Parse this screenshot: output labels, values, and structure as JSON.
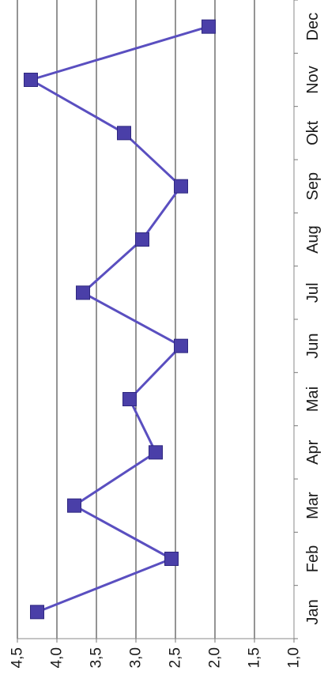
{
  "chart_data": {
    "type": "line",
    "orientation": "rotated-90-ccw",
    "title": "",
    "xlabel": "",
    "ylabel": "",
    "categories": [
      "Jan",
      "Feb",
      "Mar",
      "Apr",
      "Mai",
      "Jun",
      "Jul",
      "Aug",
      "Sep",
      "Okt",
      "Nov",
      "Dec"
    ],
    "series": [
      {
        "values": [
          4.25,
          2.55,
          3.78,
          2.75,
          3.08,
          2.43,
          3.67,
          2.92,
          2.43,
          3.15,
          4.33,
          2.08
        ],
        "line_color": "#5a4fc0",
        "marker_color": "#4a3fa8",
        "marker": "square"
      }
    ],
    "ylim": [
      1.0,
      4.5
    ],
    "yticks": [
      "1,0",
      "1,5",
      "2,0",
      "2,5",
      "3,0",
      "3,5",
      "4,0",
      "4,5"
    ],
    "grid": true,
    "legend": "none"
  }
}
